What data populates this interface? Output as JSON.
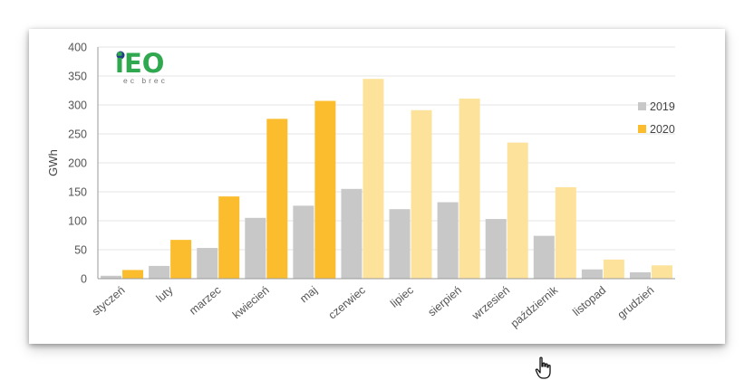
{
  "logo": {
    "mark": "iEO",
    "subtitle": "ec brec"
  },
  "chart_data": {
    "type": "bar",
    "title": "",
    "xlabel": "",
    "ylabel": "GWh",
    "ylim": [
      0,
      400
    ],
    "yticks": [
      0,
      50,
      100,
      150,
      200,
      250,
      300,
      350,
      400
    ],
    "grid": true,
    "legend_position": "right",
    "categories": [
      "styczeń",
      "luty",
      "marzec",
      "kwiecień",
      "maj",
      "czerwiec",
      "lipiec",
      "sierpień",
      "wrzesień",
      "październik",
      "listopad",
      "grudzień"
    ],
    "series": [
      {
        "name": "2019",
        "color": "#c8c8c8",
        "values": [
          5,
          22,
          53,
          105,
          126,
          155,
          120,
          132,
          103,
          74,
          16,
          11
        ]
      },
      {
        "name": "2020",
        "color": "#fbbd2e",
        "color_lighter": "#fde29b",
        "lighter_from_index": 5,
        "values": [
          15,
          67,
          142,
          276,
          307,
          345,
          291,
          311,
          235,
          158,
          33,
          23
        ]
      }
    ]
  }
}
